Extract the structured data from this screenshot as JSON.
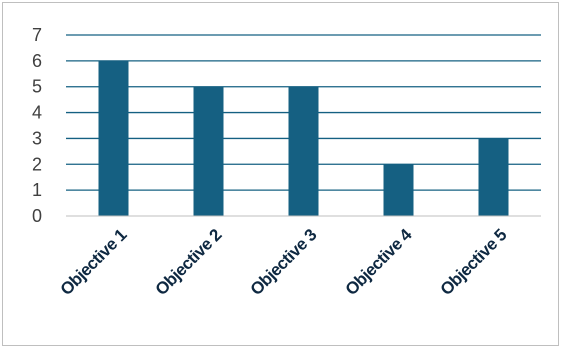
{
  "chart_data": {
    "type": "bar",
    "categories": [
      "Objective 1",
      "Objective 2",
      "Objective 3",
      "Objective 4",
      "Objective 5"
    ],
    "values": [
      6,
      5,
      5,
      2,
      3
    ],
    "title": "",
    "xlabel": "",
    "ylabel": "",
    "ylim": [
      0,
      7
    ],
    "yticks": [
      "0",
      "1",
      "2",
      "3",
      "4",
      "5",
      "6",
      "7"
    ],
    "grid": true,
    "legend": "none",
    "colors": {
      "bar": "#156082",
      "gridline": "#156082",
      "axis": "#bfbfbf",
      "category_label": "#0e2841",
      "tick_label": "#404040"
    }
  }
}
